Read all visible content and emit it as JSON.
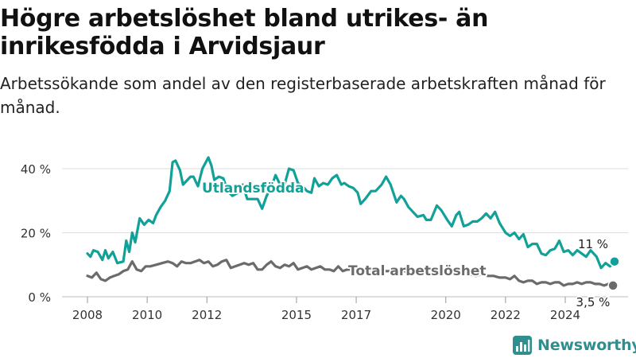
{
  "title": "Högre arbetslöshet bland utrikes- än inrikesfödda i Arvidsjaur",
  "subtitle": "Arbetssökande som andel av den registerbaserade arbetskraften månad för månad.",
  "brand": {
    "name": "Newsworthy",
    "logo_icon": "bar-chart-logo-icon"
  },
  "colors": {
    "foreign_born": "#12a198",
    "total": "#6b6b6b",
    "grid": "#dddddd",
    "axis_text": "#333333"
  },
  "chart_data": {
    "type": "line",
    "y_tick_labels": [
      "0 %",
      "20 %",
      "40 %"
    ],
    "x_tick_labels": [
      "2008",
      "2010",
      "2012",
      "2015",
      "2017",
      "2020",
      "2022",
      "2024"
    ],
    "x_tick_values": [
      2008,
      2010,
      2012,
      2015,
      2017,
      2020,
      2022,
      2024
    ],
    "xlim": [
      2008,
      2025
    ],
    "ylim": [
      0,
      45
    ],
    "grid": true,
    "legend": "inline labels",
    "series": [
      {
        "name": "Utlandsfödda",
        "color": "#12a198",
        "end_label": "11 %",
        "end_value": 11,
        "points": [
          [
            2008.0,
            13.5
          ],
          [
            2008.1,
            12.5
          ],
          [
            2008.2,
            14.5
          ],
          [
            2008.35,
            14.0
          ],
          [
            2008.5,
            11.5
          ],
          [
            2008.6,
            14.5
          ],
          [
            2008.7,
            12.0
          ],
          [
            2008.85,
            14.0
          ],
          [
            2009.0,
            10.5
          ],
          [
            2009.2,
            11.0
          ],
          [
            2009.3,
            17.5
          ],
          [
            2009.4,
            14.0
          ],
          [
            2009.5,
            20.0
          ],
          [
            2009.6,
            17.0
          ],
          [
            2009.75,
            24.5
          ],
          [
            2009.9,
            22.5
          ],
          [
            2010.05,
            24.0
          ],
          [
            2010.2,
            23.0
          ],
          [
            2010.3,
            25.5
          ],
          [
            2010.45,
            28.0
          ],
          [
            2010.6,
            30.0
          ],
          [
            2010.75,
            33.0
          ],
          [
            2010.85,
            42.0
          ],
          [
            2010.95,
            42.5
          ],
          [
            2011.1,
            39.5
          ],
          [
            2011.2,
            35.0
          ],
          [
            2011.35,
            36.5
          ],
          [
            2011.45,
            37.5
          ],
          [
            2011.55,
            37.5
          ],
          [
            2011.7,
            34.5
          ],
          [
            2011.85,
            40.0
          ],
          [
            2012.05,
            43.5
          ],
          [
            2012.15,
            41.0
          ],
          [
            2012.25,
            36.5
          ],
          [
            2012.4,
            37.5
          ],
          [
            2012.55,
            37.0
          ],
          [
            2012.7,
            33.0
          ],
          [
            2012.85,
            31.5
          ],
          [
            2013.05,
            32.5
          ],
          [
            2013.2,
            35.0
          ],
          [
            2013.35,
            30.5
          ],
          [
            2013.55,
            30.5
          ],
          [
            2013.7,
            30.5
          ],
          [
            2013.85,
            27.5
          ],
          [
            2014.0,
            31.5
          ],
          [
            2014.15,
            34.0
          ],
          [
            2014.3,
            38.0
          ],
          [
            2014.5,
            34.0
          ],
          [
            2014.6,
            35.0
          ],
          [
            2014.75,
            40.0
          ],
          [
            2014.9,
            39.5
          ],
          [
            2015.05,
            35.5
          ],
          [
            2015.2,
            34.5
          ],
          [
            2015.35,
            33.0
          ],
          [
            2015.5,
            32.5
          ],
          [
            2015.6,
            37.0
          ],
          [
            2015.75,
            34.5
          ],
          [
            2015.9,
            35.5
          ],
          [
            2016.05,
            35.0
          ],
          [
            2016.2,
            37.0
          ],
          [
            2016.35,
            38.0
          ],
          [
            2016.5,
            35.0
          ],
          [
            2016.6,
            35.5
          ],
          [
            2016.75,
            34.5
          ],
          [
            2016.9,
            34.0
          ],
          [
            2017.05,
            32.5
          ],
          [
            2017.15,
            29.0
          ],
          [
            2017.3,
            30.5
          ],
          [
            2017.5,
            33.0
          ],
          [
            2017.65,
            33.0
          ],
          [
            2017.85,
            35.0
          ],
          [
            2018.0,
            37.5
          ],
          [
            2018.15,
            35.0
          ],
          [
            2018.35,
            29.5
          ],
          [
            2018.5,
            31.5
          ],
          [
            2018.6,
            30.5
          ],
          [
            2018.75,
            28.0
          ],
          [
            2018.9,
            26.5
          ],
          [
            2019.05,
            25.0
          ],
          [
            2019.25,
            25.5
          ],
          [
            2019.35,
            24.0
          ],
          [
            2019.5,
            24.0
          ],
          [
            2019.7,
            28.5
          ],
          [
            2019.85,
            27.0
          ],
          [
            2020.05,
            24.0
          ],
          [
            2020.2,
            22.0
          ],
          [
            2020.35,
            25.5
          ],
          [
            2020.45,
            26.5
          ],
          [
            2020.6,
            22.0
          ],
          [
            2020.75,
            22.5
          ],
          [
            2020.9,
            23.5
          ],
          [
            2021.05,
            23.5
          ],
          [
            2021.2,
            24.5
          ],
          [
            2021.35,
            26.0
          ],
          [
            2021.5,
            24.5
          ],
          [
            2021.65,
            26.5
          ],
          [
            2021.8,
            23.0
          ],
          [
            2022.0,
            20.0
          ],
          [
            2022.15,
            19.0
          ],
          [
            2022.3,
            20.0
          ],
          [
            2022.45,
            18.0
          ],
          [
            2022.6,
            19.5
          ],
          [
            2022.75,
            15.5
          ],
          [
            2022.9,
            16.5
          ],
          [
            2023.05,
            16.5
          ],
          [
            2023.2,
            13.5
          ],
          [
            2023.35,
            13.0
          ],
          [
            2023.5,
            14.5
          ],
          [
            2023.65,
            15.0
          ],
          [
            2023.8,
            17.5
          ],
          [
            2023.95,
            14.0
          ],
          [
            2024.1,
            14.5
          ],
          [
            2024.25,
            13.0
          ],
          [
            2024.4,
            14.5
          ],
          [
            2024.55,
            13.5
          ],
          [
            2024.7,
            12.5
          ],
          [
            2024.85,
            14.5
          ],
          [
            2025.05,
            12.5
          ],
          [
            2025.2,
            9.0
          ],
          [
            2025.35,
            10.5
          ],
          [
            2025.5,
            9.5
          ],
          [
            2025.65,
            11.0
          ]
        ]
      },
      {
        "name": "Total arbetslöshet",
        "color": "#6b6b6b",
        "end_label": "3,5 %",
        "end_value": 3.5,
        "points": [
          [
            2008.0,
            6.5
          ],
          [
            2008.15,
            6.0
          ],
          [
            2008.3,
            7.5
          ],
          [
            2008.45,
            5.5
          ],
          [
            2008.6,
            5.0
          ],
          [
            2008.75,
            6.0
          ],
          [
            2008.9,
            6.5
          ],
          [
            2009.05,
            7.0
          ],
          [
            2009.2,
            8.0
          ],
          [
            2009.35,
            8.5
          ],
          [
            2009.5,
            11.0
          ],
          [
            2009.65,
            8.5
          ],
          [
            2009.8,
            8.0
          ],
          [
            2009.95,
            9.5
          ],
          [
            2010.1,
            9.5
          ],
          [
            2010.3,
            10.0
          ],
          [
            2010.5,
            10.5
          ],
          [
            2010.7,
            11.0
          ],
          [
            2010.85,
            10.5
          ],
          [
            2011.0,
            9.5
          ],
          [
            2011.15,
            11.0
          ],
          [
            2011.3,
            10.5
          ],
          [
            2011.45,
            10.5
          ],
          [
            2011.6,
            11.0
          ],
          [
            2011.75,
            11.5
          ],
          [
            2011.9,
            10.5
          ],
          [
            2012.05,
            11.0
          ],
          [
            2012.2,
            9.5
          ],
          [
            2012.35,
            10.0
          ],
          [
            2012.5,
            11.0
          ],
          [
            2012.65,
            11.5
          ],
          [
            2012.8,
            9.0
          ],
          [
            2012.95,
            9.5
          ],
          [
            2013.1,
            10.0
          ],
          [
            2013.25,
            10.5
          ],
          [
            2013.4,
            10.0
          ],
          [
            2013.55,
            10.5
          ],
          [
            2013.7,
            8.5
          ],
          [
            2013.85,
            8.5
          ],
          [
            2014.0,
            10.0
          ],
          [
            2014.15,
            11.0
          ],
          [
            2014.3,
            9.5
          ],
          [
            2014.45,
            9.0
          ],
          [
            2014.6,
            10.0
          ],
          [
            2014.75,
            9.5
          ],
          [
            2014.9,
            10.5
          ],
          [
            2015.05,
            8.5
          ],
          [
            2015.2,
            9.0
          ],
          [
            2015.35,
            9.5
          ],
          [
            2015.5,
            8.5
          ],
          [
            2015.65,
            9.0
          ],
          [
            2015.8,
            9.5
          ],
          [
            2015.95,
            8.5
          ],
          [
            2016.1,
            8.5
          ],
          [
            2016.25,
            8.0
          ],
          [
            2016.4,
            9.5
          ],
          [
            2016.55,
            8.0
          ],
          [
            2016.7,
            8.5
          ],
          [
            2016.85,
            8.5
          ],
          [
            2017.0,
            8.0
          ],
          [
            2017.2,
            8.0
          ],
          [
            2017.4,
            8.5
          ],
          [
            2017.6,
            8.0
          ],
          [
            2017.8,
            8.5
          ],
          [
            2018.0,
            8.0
          ],
          [
            2018.2,
            8.0
          ],
          [
            2018.4,
            7.5
          ],
          [
            2018.6,
            8.0
          ],
          [
            2018.8,
            7.5
          ],
          [
            2019.0,
            8.0
          ],
          [
            2019.2,
            7.5
          ],
          [
            2019.4,
            7.0
          ],
          [
            2019.6,
            7.5
          ],
          [
            2019.8,
            7.5
          ],
          [
            2020.0,
            7.0
          ],
          [
            2020.2,
            7.5
          ],
          [
            2020.4,
            7.0
          ],
          [
            2020.6,
            7.5
          ],
          [
            2020.8,
            7.0
          ],
          [
            2021.0,
            6.5
          ],
          [
            2021.2,
            7.0
          ],
          [
            2021.4,
            6.5
          ],
          [
            2021.6,
            6.5
          ],
          [
            2021.8,
            6.0
          ],
          [
            2022.0,
            6.0
          ],
          [
            2022.15,
            5.5
          ],
          [
            2022.3,
            6.5
          ],
          [
            2022.45,
            5.0
          ],
          [
            2022.6,
            4.5
          ],
          [
            2022.75,
            5.0
          ],
          [
            2022.9,
            5.0
          ],
          [
            2023.05,
            4.0
          ],
          [
            2023.2,
            4.5
          ],
          [
            2023.35,
            4.5
          ],
          [
            2023.5,
            4.0
          ],
          [
            2023.65,
            4.5
          ],
          [
            2023.8,
            4.5
          ],
          [
            2023.95,
            3.5
          ],
          [
            2024.1,
            4.0
          ],
          [
            2024.25,
            4.0
          ],
          [
            2024.4,
            4.5
          ],
          [
            2024.55,
            4.0
          ],
          [
            2024.7,
            4.5
          ],
          [
            2024.85,
            4.5
          ],
          [
            2025.0,
            4.0
          ],
          [
            2025.15,
            4.0
          ],
          [
            2025.3,
            3.5
          ],
          [
            2025.45,
            4.0
          ],
          [
            2025.6,
            3.5
          ]
        ]
      }
    ]
  }
}
